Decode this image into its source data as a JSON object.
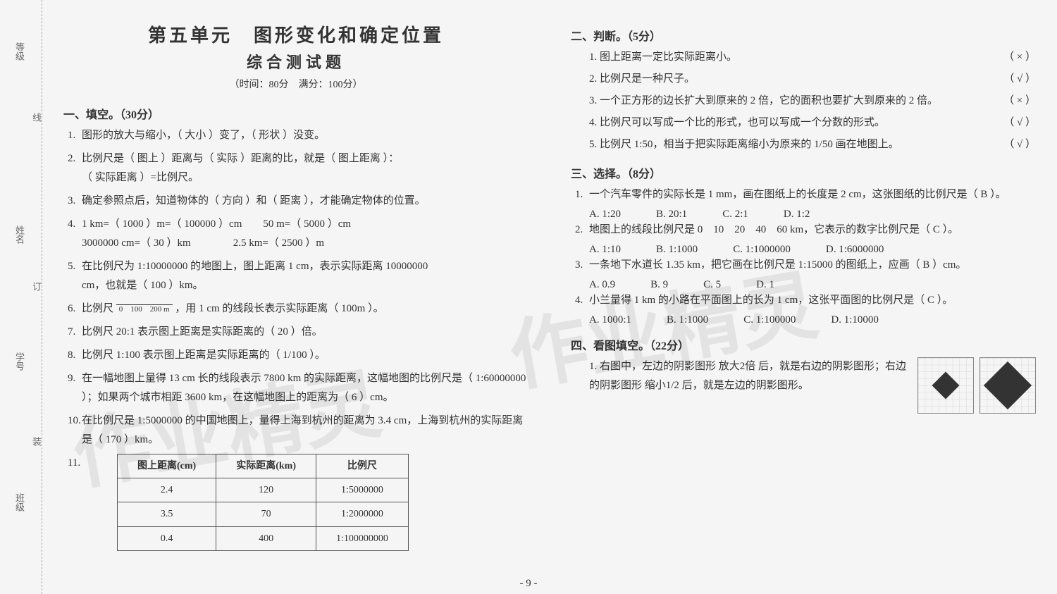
{
  "title": "第五单元　图形变化和确定位置",
  "subtitle": "综合测试题",
  "timing": "（时间：80分　满分：100分）",
  "gutter": {
    "l1": "等级",
    "l2": "姓名",
    "l3": "学号",
    "l4": "班级",
    "r1": "线",
    "r2": "订",
    "r3": "装"
  },
  "sec1": {
    "head": "一、填空。（30分）",
    "q1": {
      "pre": "图形的放大与缩小，（",
      "a1": "大小",
      "mid": "）变了，（",
      "a2": "形状",
      "post": "）没变。"
    },
    "q2": {
      "l1a": "比例尺是（",
      "a1": "图上",
      "l1b": "）距离与（",
      "a2": "实际",
      "l1c": "）距离的比，就是（",
      "a3": "图上距离",
      "l1d": "）：",
      "l2a": "（",
      "a4": "实际距离",
      "l2b": "）=比例尺。"
    },
    "q3": {
      "a": "确定参照点后，知道物体的（",
      "a1": "方向",
      "b": "）和（",
      "a2": "距离",
      "c": "），才能确定物体的位置。"
    },
    "q4": {
      "p1": "1 km=（",
      "a1": "1000",
      "p2": "）m=（",
      "a2": "100000",
      "p3": "）cm　　50 m=（",
      "a3": "5000",
      "p4": "）cm",
      "p5": "3000000 cm=（",
      "a4": "30",
      "p6": "）km　　　　2.5 km=（",
      "a5": "2500",
      "p7": "）m"
    },
    "q5": {
      "a": "在比例尺为 1:10000000 的地图上，图上距离 1 cm，表示实际距离",
      "a1": "10000000",
      "b": "cm，也就是（",
      "a2": "100",
      "c": "）km。"
    },
    "q6": {
      "a": "比例尺",
      "scale": "0　100　200 m",
      "b": "，用 1 cm 的线段长表示实际距离（",
      "a1": "100m",
      "c": "）。"
    },
    "q7": {
      "a": "比例尺 20:1 表示图上距离是实际距离的（",
      "a1": "20",
      "b": "）倍。"
    },
    "q8": {
      "a": "比例尺 1:100 表示图上距离是实际距离的（",
      "a1": "1/100",
      "b": "）。"
    },
    "q9": {
      "a": "在一幅地图上量得 13 cm 长的线段表示 7800 km 的实际距离，这幅地图的比例尺是（",
      "a1": "1:60000000",
      "b": "）；如果两个城市相距 3600 km，在这幅地图上的距离为（",
      "a2": "6",
      "c": "）cm。"
    },
    "q10": {
      "a": "在比例尺是 1:5000000 的中国地图上，量得上海到杭州的距离为 3.4 cm，上海到杭州的实际距离是（",
      "a1": "170",
      "b": "）km。"
    },
    "table": {
      "h1": "图上距离(cm)",
      "h2": "实际距离(km)",
      "h3": "比例尺",
      "rows": [
        {
          "c1": "2.4",
          "c2": "120",
          "c3": "1:5000000"
        },
        {
          "c1": "3.5",
          "c2": "70",
          "c3": "1:2000000"
        },
        {
          "c1": "0.4",
          "c2": "400",
          "c3": "1:100000000"
        }
      ]
    }
  },
  "sec2": {
    "head": "二、判断。（5分）",
    "items": [
      {
        "t": "1. 图上距离一定比实际距离小。",
        "m": "（ × ）"
      },
      {
        "t": "2. 比例尺是一种尺子。",
        "m": "（ √ ）"
      },
      {
        "t": "3. 一个正方形的边长扩大到原来的 2 倍，它的面积也要扩大到原来的 2 倍。",
        "m": "（ × ）"
      },
      {
        "t": "4. 比例尺可以写成一个比的形式，也可以写成一个分数的形式。",
        "m": "（ √ ）"
      },
      {
        "t": "5. 比例尺 1:50，相当于把实际距离缩小为原来的 1/50 画在地图上。",
        "m": "（ √ ）"
      }
    ]
  },
  "sec3": {
    "head": "三、选择。（8分）",
    "q1": {
      "t": "一个汽车零件的实际长是 1 mm，画在图纸上的长度是 2 cm，这张图纸的比例尺是（",
      "a": "B",
      "post": "）。",
      "optA": "A. 1:20",
      "optB": "B. 20:1",
      "optC": "C. 2:1",
      "optD": "D. 1:2"
    },
    "q2": {
      "t": "地图上的线段比例尺是 0　10　20　40　60 km，它表示的数字比例尺是（",
      "a": "C",
      "post": "）。",
      "optA": "A. 1:10",
      "optB": "B. 1:1000",
      "optC": "C. 1:1000000",
      "optD": "D. 1:6000000"
    },
    "q3": {
      "t": "一条地下水道长 1.35 km，把它画在比例尺是 1:15000 的图纸上，应画（",
      "a": "B",
      "post": "）cm。",
      "optA": "A. 0.9",
      "optB": "B. 9",
      "optC": "C. 5",
      "optD": "D. 1"
    },
    "q4": {
      "t": "小兰量得 1 km 的小路在平面图上的长为 1 cm，这张平面图的比例尺是（",
      "a": "C",
      "post": "）。",
      "optA": "A. 1000:1",
      "optB": "B. 1:1000",
      "optC": "C. 1:100000",
      "optD": "D. 1:10000"
    }
  },
  "sec4": {
    "head": "四、看图填空。（22分）",
    "q1": {
      "pre": "1. 右图中，左边的阴影图形",
      "a1": "放大2倍",
      "mid": "后，就是右边的阴影图形；右边的阴影图形",
      "a2": "缩小1/2",
      "post": "后，就是左边的阴影图形。"
    }
  },
  "pagenum": "- 9 -",
  "colors": {
    "text": "#333333",
    "answer": "#222222",
    "border": "#555555",
    "bg": "#f5f5f5"
  }
}
